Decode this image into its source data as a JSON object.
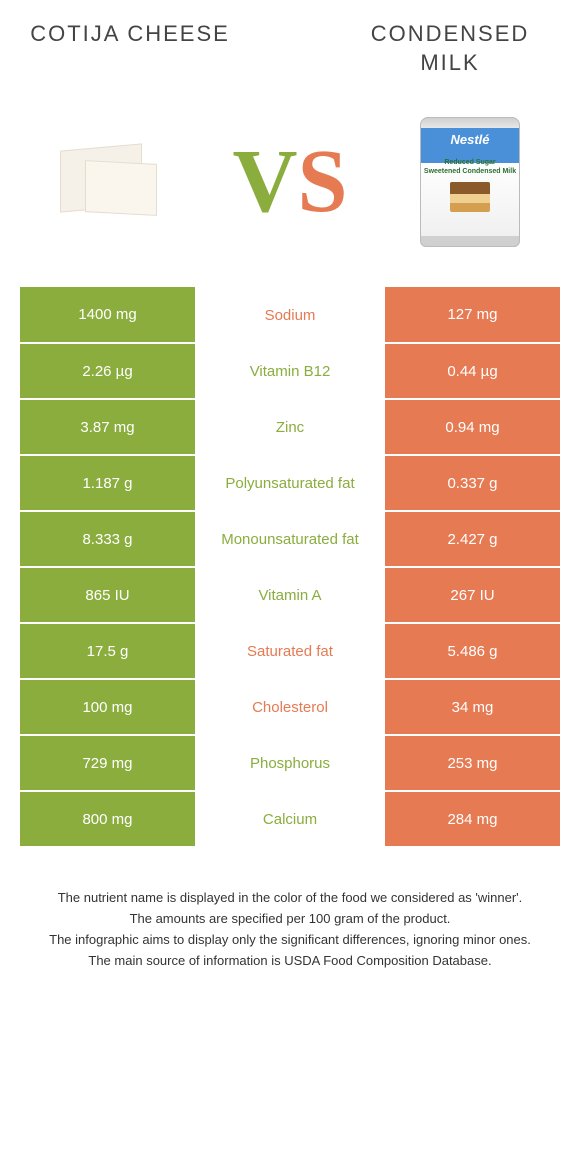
{
  "left": {
    "title": "COTIJA CHEESE",
    "color": "#8aad3e"
  },
  "right": {
    "title": "CONDENSED MILK",
    "color": "#e67a53"
  },
  "can": {
    "brand": "Nestlé",
    "line1": "Reduced Sugar",
    "line2": "Sweetened Condensed Milk"
  },
  "vs": {
    "v": "V",
    "s": "S"
  },
  "rows": [
    {
      "left": "1400 mg",
      "label": "Sodium",
      "right": "127 mg",
      "winner": "right"
    },
    {
      "left": "2.26 µg",
      "label": "Vitamin B12",
      "right": "0.44 µg",
      "winner": "left"
    },
    {
      "left": "3.87 mg",
      "label": "Zinc",
      "right": "0.94 mg",
      "winner": "left"
    },
    {
      "left": "1.187 g",
      "label": "Polyunsaturated fat",
      "right": "0.337 g",
      "winner": "left"
    },
    {
      "left": "8.333 g",
      "label": "Monounsaturated fat",
      "right": "2.427 g",
      "winner": "left"
    },
    {
      "left": "865 IU",
      "label": "Vitamin A",
      "right": "267 IU",
      "winner": "left"
    },
    {
      "left": "17.5 g",
      "label": "Saturated fat",
      "right": "5.486 g",
      "winner": "right"
    },
    {
      "left": "100 mg",
      "label": "Cholesterol",
      "right": "34 mg",
      "winner": "right"
    },
    {
      "left": "729 mg",
      "label": "Phosphorus",
      "right": "253 mg",
      "winner": "left"
    },
    {
      "left": "800 mg",
      "label": "Calcium",
      "right": "284 mg",
      "winner": "left"
    }
  ],
  "footer": {
    "l1": "The nutrient name is displayed in the color of the food we considered as 'winner'.",
    "l2": "The amounts are specified per 100 gram of the product.",
    "l3": "The infographic aims to display only the significant differences, ignoring minor ones.",
    "l4": "The main source of information is USDA Food Composition Database."
  }
}
